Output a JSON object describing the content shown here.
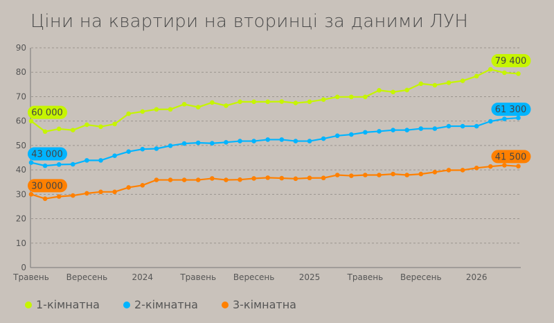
{
  "chart_data": {
    "type": "line",
    "title": "Ціни на квартири на вторинці за даними ЛУН",
    "xlabel": "",
    "ylabel": "",
    "ylim": [
      0,
      90
    ],
    "yticks": [
      0,
      10,
      20,
      30,
      40,
      50,
      60,
      70,
      80,
      90
    ],
    "grid": true,
    "legend": "bottom-left",
    "x_tick_labels": [
      {
        "index": 0,
        "label": "Травень"
      },
      {
        "index": 4,
        "label": "Вересень"
      },
      {
        "index": 8,
        "label": "2024"
      },
      {
        "index": 12,
        "label": "Травень"
      },
      {
        "index": 16,
        "label": "Вересень"
      },
      {
        "index": 20,
        "label": "2025"
      },
      {
        "index": 24,
        "label": "Травень"
      },
      {
        "index": 28,
        "label": "Вересень"
      },
      {
        "index": 32,
        "label": "2026"
      }
    ],
    "series": [
      {
        "name": "1-кімнатна",
        "color": "#c6f500",
        "start_label": "60 000",
        "end_label": "79 400",
        "values": [
          60,
          55.7,
          56.8,
          56.3,
          58.5,
          57.7,
          58.8,
          63,
          63.9,
          64.8,
          64.8,
          66.9,
          65.7,
          67.6,
          66.3,
          67.9,
          67.9,
          67.9,
          68,
          67.4,
          67.9,
          68.8,
          69.9,
          69.9,
          69.9,
          72.6,
          71.9,
          72.7,
          75.3,
          74.7,
          75.7,
          76.5,
          78.4,
          81.2,
          79.8,
          79.4
        ]
      },
      {
        "name": "2-кімнатна",
        "color": "#00b4ff",
        "start_label": "43 000",
        "end_label": "61 300",
        "values": [
          43,
          41.7,
          42.2,
          42.3,
          43.9,
          43.9,
          45.8,
          47.5,
          48.5,
          48.7,
          49.9,
          50.8,
          51.1,
          50.9,
          51.3,
          51.8,
          51.8,
          52.4,
          52.4,
          51.8,
          51.8,
          52.8,
          54,
          54.5,
          55.4,
          55.8,
          56.3,
          56.3,
          56.9,
          56.9,
          57.9,
          57.9,
          57.9,
          59.9,
          60.9,
          61.3
        ]
      },
      {
        "name": "3-кімнатна",
        "color": "#ff8000",
        "start_label": "30 000",
        "end_label": "41 500",
        "values": [
          30,
          28.2,
          29.1,
          29.5,
          30.4,
          31,
          31,
          32.8,
          33.7,
          35.9,
          35.9,
          35.9,
          35.9,
          36.5,
          35.9,
          36,
          36.5,
          36.8,
          36.6,
          36.4,
          36.7,
          36.7,
          37.9,
          37.6,
          37.9,
          37.9,
          38.3,
          37.9,
          38.3,
          39.1,
          39.9,
          39.9,
          40.8,
          41.4,
          41.9,
          41.5
        ]
      }
    ]
  }
}
